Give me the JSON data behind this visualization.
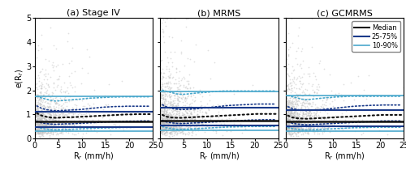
{
  "panels": [
    {
      "title": "(a) Stage IV"
    },
    {
      "title": "(b) MRMS"
    },
    {
      "title": "(c) GCMRMS"
    }
  ],
  "xlabel": "R$_r$ (mm/h)",
  "ylabel": "e(R$_r$)",
  "xlim": [
    0,
    25
  ],
  "ylim": [
    0,
    5
  ],
  "yticks": [
    0,
    1,
    2,
    3,
    4,
    5
  ],
  "xticks": [
    0,
    5,
    10,
    15,
    20,
    25
  ],
  "scatter_color": "#c0c0c0",
  "scatter_alpha": 0.5,
  "scatter_size": 1.5,
  "panel_a": {
    "empirical_median_y": [
      1.05,
      0.95,
      0.9,
      0.87,
      0.86,
      0.87,
      0.88,
      0.88,
      0.89,
      0.9,
      0.91,
      0.92,
      0.93,
      0.94,
      0.95,
      0.96,
      0.97,
      0.98,
      0.99,
      1.0,
      1.0,
      1.01,
      1.01,
      1.01,
      1.01
    ],
    "empirical_q25_y": [
      0.72,
      0.65,
      0.62,
      0.6,
      0.59,
      0.6,
      0.61,
      0.61,
      0.62,
      0.63,
      0.64,
      0.65,
      0.66,
      0.67,
      0.68,
      0.69,
      0.7,
      0.71,
      0.71,
      0.72,
      0.72,
      0.72,
      0.73,
      0.73,
      0.73
    ],
    "empirical_q75_y": [
      1.35,
      1.25,
      1.2,
      1.17,
      1.15,
      1.16,
      1.17,
      1.18,
      1.19,
      1.2,
      1.22,
      1.24,
      1.26,
      1.28,
      1.3,
      1.31,
      1.32,
      1.33,
      1.33,
      1.34,
      1.34,
      1.34,
      1.34,
      1.34,
      1.34
    ],
    "empirical_q10_y": [
      0.48,
      0.42,
      0.39,
      0.37,
      0.36,
      0.37,
      0.38,
      0.38,
      0.39,
      0.4,
      0.41,
      0.42,
      0.43,
      0.43,
      0.44,
      0.44,
      0.45,
      0.45,
      0.46,
      0.46,
      0.46,
      0.47,
      0.47,
      0.47,
      0.47
    ],
    "empirical_q90_y": [
      1.75,
      1.68,
      1.63,
      1.58,
      1.55,
      1.57,
      1.58,
      1.6,
      1.62,
      1.63,
      1.65,
      1.67,
      1.68,
      1.69,
      1.7,
      1.71,
      1.72,
      1.72,
      1.73,
      1.73,
      1.73,
      1.73,
      1.73,
      1.73,
      1.73
    ],
    "gamma_median": 0.7,
    "gamma_q25": 0.46,
    "gamma_q75": 1.1,
    "gamma_q10": 0.3,
    "gamma_q90": 1.75
  },
  "panel_b": {
    "empirical_median_y": [
      0.98,
      0.9,
      0.87,
      0.86,
      0.86,
      0.87,
      0.88,
      0.89,
      0.9,
      0.91,
      0.92,
      0.93,
      0.94,
      0.95,
      0.96,
      0.97,
      0.98,
      0.99,
      1.0,
      1.01,
      1.02,
      1.02,
      1.02,
      1.02,
      1.02
    ],
    "empirical_q25_y": [
      0.75,
      0.68,
      0.65,
      0.63,
      0.62,
      0.63,
      0.64,
      0.65,
      0.66,
      0.67,
      0.68,
      0.69,
      0.7,
      0.71,
      0.72,
      0.73,
      0.74,
      0.75,
      0.76,
      0.77,
      0.77,
      0.78,
      0.78,
      0.78,
      0.78
    ],
    "empirical_q75_y": [
      1.4,
      1.3,
      1.25,
      1.22,
      1.2,
      1.21,
      1.22,
      1.23,
      1.25,
      1.27,
      1.29,
      1.31,
      1.33,
      1.35,
      1.37,
      1.38,
      1.39,
      1.4,
      1.41,
      1.42,
      1.43,
      1.43,
      1.43,
      1.43,
      1.43
    ],
    "empirical_q10_y": [
      0.5,
      0.44,
      0.41,
      0.39,
      0.38,
      0.39,
      0.4,
      0.41,
      0.42,
      0.43,
      0.44,
      0.45,
      0.46,
      0.47,
      0.48,
      0.48,
      0.49,
      0.49,
      0.5,
      0.5,
      0.5,
      0.5,
      0.5,
      0.5,
      0.5
    ],
    "empirical_q90_y": [
      2.0,
      1.95,
      1.9,
      1.85,
      1.83,
      1.84,
      1.86,
      1.88,
      1.9,
      1.91,
      1.93,
      1.95,
      1.96,
      1.97,
      1.97,
      1.97,
      1.97,
      1.97,
      1.97,
      1.97,
      1.97,
      1.97,
      1.97,
      1.97,
      1.97
    ],
    "gamma_median": 0.75,
    "gamma_q25": 0.55,
    "gamma_q75": 1.28,
    "gamma_q10": 0.35,
    "gamma_q90": 1.95
  },
  "panel_c": {
    "empirical_median_y": [
      0.95,
      0.87,
      0.84,
      0.83,
      0.82,
      0.83,
      0.84,
      0.85,
      0.86,
      0.87,
      0.88,
      0.89,
      0.9,
      0.91,
      0.92,
      0.93,
      0.94,
      0.95,
      0.96,
      0.97,
      0.98,
      0.98,
      0.98,
      0.98,
      0.98
    ],
    "empirical_q25_y": [
      0.7,
      0.63,
      0.6,
      0.58,
      0.57,
      0.58,
      0.59,
      0.6,
      0.61,
      0.62,
      0.63,
      0.64,
      0.65,
      0.66,
      0.67,
      0.68,
      0.69,
      0.7,
      0.71,
      0.72,
      0.73,
      0.73,
      0.73,
      0.73,
      0.73
    ],
    "empirical_q75_y": [
      1.32,
      1.24,
      1.2,
      1.17,
      1.16,
      1.17,
      1.18,
      1.2,
      1.22,
      1.24,
      1.26,
      1.28,
      1.3,
      1.32,
      1.34,
      1.35,
      1.36,
      1.37,
      1.38,
      1.38,
      1.39,
      1.39,
      1.39,
      1.39,
      1.39
    ],
    "empirical_q10_y": [
      0.46,
      0.41,
      0.38,
      0.36,
      0.35,
      0.36,
      0.37,
      0.38,
      0.39,
      0.4,
      0.41,
      0.42,
      0.43,
      0.44,
      0.45,
      0.45,
      0.46,
      0.46,
      0.47,
      0.47,
      0.47,
      0.47,
      0.47,
      0.47,
      0.47
    ],
    "empirical_q90_y": [
      1.78,
      1.73,
      1.68,
      1.63,
      1.61,
      1.63,
      1.65,
      1.67,
      1.69,
      1.7,
      1.72,
      1.73,
      1.74,
      1.75,
      1.75,
      1.75,
      1.75,
      1.75,
      1.75,
      1.75,
      1.75,
      1.75,
      1.75,
      1.75,
      1.75
    ],
    "gamma_median": 0.72,
    "gamma_q25": 0.5,
    "gamma_q75": 1.18,
    "gamma_q10": 0.32,
    "gamma_q90": 1.78
  },
  "color_median": "#111111",
  "color_q2575": "#1a3a8a",
  "color_q1090": "#4aa8cc",
  "legend_fontsize": 6,
  "axis_fontsize": 7,
  "title_fontsize": 8
}
